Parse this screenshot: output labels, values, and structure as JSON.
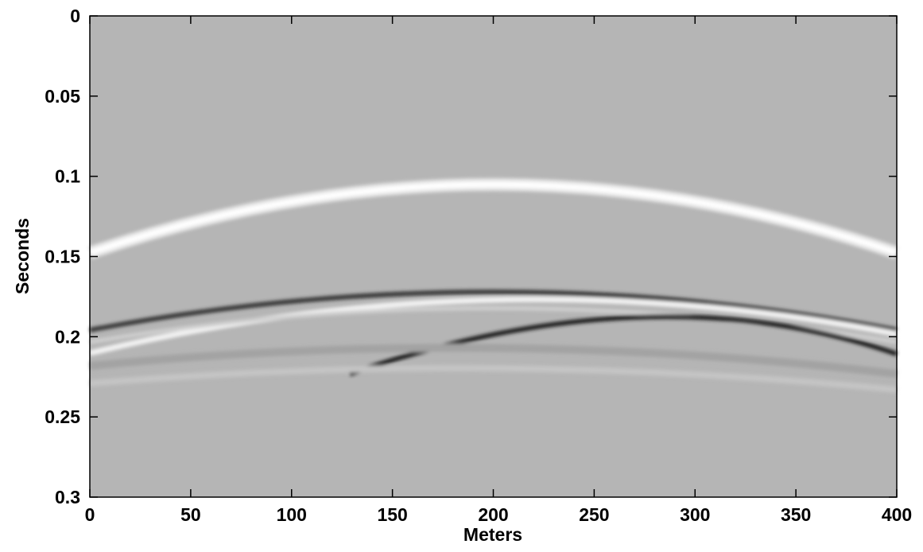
{
  "chart_data": {
    "type": "heatmap",
    "xlabel": "Meters",
    "ylabel": "Seconds",
    "xlim": [
      0,
      400
    ],
    "xticks": [
      0,
      50,
      100,
      150,
      200,
      250,
      300,
      350,
      400
    ],
    "ylim": [
      0,
      0.3
    ],
    "yticks": [
      0,
      0.05,
      0.1,
      0.15,
      0.2,
      0.25,
      0.3
    ],
    "y_inverted": true
  }
}
